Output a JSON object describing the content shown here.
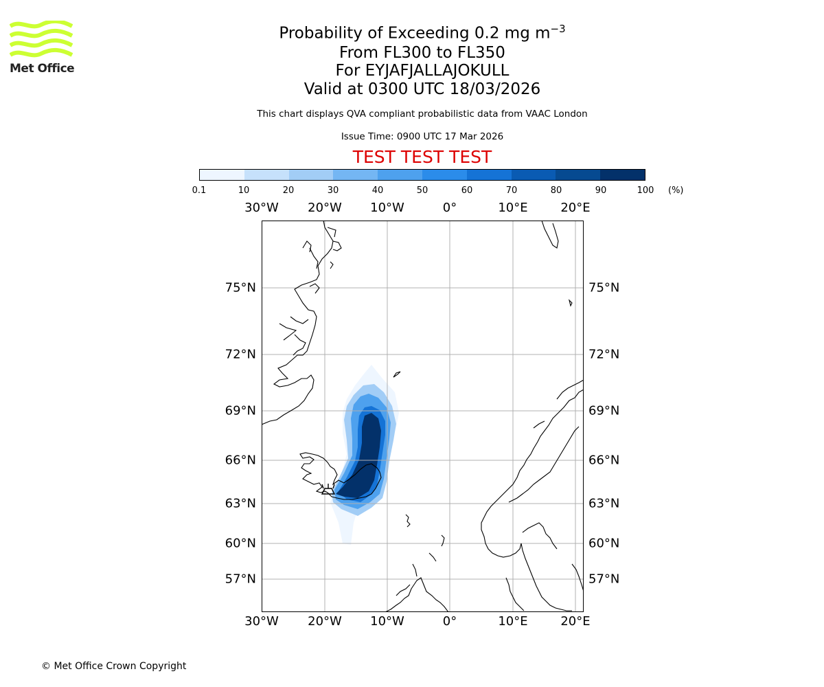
{
  "brand": {
    "name": "Met Office",
    "logo_color": "#ccff33"
  },
  "header": {
    "title_prefix": "Probability of Exceeding 0.2 mg m",
    "title_exp": "−3",
    "levels": "From FL300 to FL350",
    "volcano": "For EYJAFJALLAJOKULL",
    "valid": "Valid at 0300 UTC 18/03/2026",
    "description": "This chart displays QVA compliant probabilistic data from VAAC London",
    "issue_time": "Issue Time: 0900 UTC 17 Mar 2026",
    "test_banner": "TEST TEST TEST"
  },
  "colorbar": {
    "ticks": [
      "0.1",
      "10",
      "20",
      "30",
      "40",
      "50",
      "60",
      "70",
      "80",
      "90",
      "100"
    ],
    "unit": "(%)",
    "colors": [
      "#eef6ff",
      "#c6e1fb",
      "#a2cdf6",
      "#74b6f3",
      "#4ea1ee",
      "#2b8cea",
      "#1573d6",
      "#0a5bb3",
      "#064a91",
      "#03316a"
    ]
  },
  "map": {
    "lon_labels": [
      "30°W",
      "20°W",
      "10°W",
      "0°",
      "10°E",
      "20°E"
    ],
    "lat_labels": [
      "75°N",
      "72°N",
      "69°N",
      "66°N",
      "63°N",
      "60°N",
      "57°N"
    ],
    "grid_color": "#b0b0b0",
    "plume_color_max": "#03316a"
  },
  "footer": {
    "copyright": "© Met Office Crown Copyright"
  }
}
